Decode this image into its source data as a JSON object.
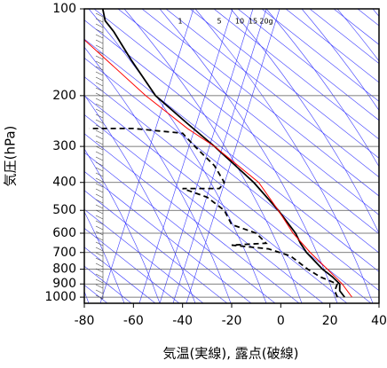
{
  "chart_data": {
    "type": "line",
    "xlabel": "気温(実線), 露点(破線)",
    "ylabel": "気圧(hPa)",
    "xlim": [
      -80,
      40
    ],
    "xticks": [
      -80,
      -60,
      -40,
      -20,
      0,
      20,
      40
    ],
    "ylim": [
      1050,
      100
    ],
    "yticks": [
      100,
      200,
      300,
      400,
      500,
      600,
      700,
      800,
      900,
      1000
    ],
    "log_y": true,
    "grid": true,
    "mixing_ratio_labels": [
      "1",
      "5",
      "10",
      "15",
      "20g"
    ],
    "series": [
      {
        "color": "#000000",
        "style": "solid",
        "x": [
          26,
          24,
          24,
          21,
          17,
          10.5,
          8,
          6,
          -1,
          -11,
          -27,
          -38,
          -51,
          -61,
          -68,
          -71.5,
          -72.5
        ],
        "y": [
          1000,
          950,
          900,
          850,
          800,
          700,
          650,
          600,
          500,
          400,
          300,
          250,
          200,
          150,
          120,
          110,
          100
        ]
      },
      {
        "color": "#ff0000",
        "style": "solid",
        "x": [
          29,
          25,
          19,
          12,
          5,
          -1,
          -9,
          -27,
          -38,
          -55,
          -80
        ],
        "y": [
          1000,
          900,
          800,
          700,
          600,
          500,
          400,
          300,
          260,
          200,
          128
        ]
      },
      {
        "color": "#000000",
        "style": "dashed",
        "x": [
          23,
          22,
          23,
          16,
          11,
          4,
          -5,
          -20,
          -6,
          -10,
          -20,
          -23,
          -30,
          -40,
          -25,
          -23,
          -27,
          -35,
          -40,
          -60,
          -78
        ],
        "y": [
          1000,
          950,
          900,
          850,
          800,
          720,
          680,
          660,
          650,
          600,
          560,
          500,
          450,
          420,
          420,
          400,
          350,
          300,
          270,
          260,
          260
        ]
      }
    ]
  }
}
